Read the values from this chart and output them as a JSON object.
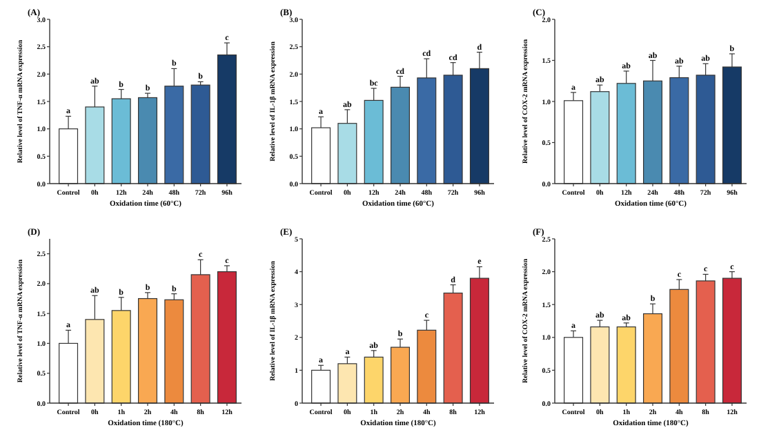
{
  "chart_data": [
    {
      "type": "bar",
      "title": "(A)",
      "xlabel": "Oxidation time (60°C)",
      "ylabel": "Relative level of TNF-α mRNA expression",
      "categories": [
        "Control",
        "0h",
        "12h",
        "24h",
        "48h",
        "72h",
        "96h"
      ],
      "values": [
        1.0,
        1.4,
        1.55,
        1.57,
        1.78,
        1.8,
        2.35
      ],
      "errors": [
        0.23,
        0.38,
        0.17,
        0.08,
        0.32,
        0.06,
        0.22
      ],
      "colors": [
        "#ffffff",
        "#a8dce6",
        "#6bbcd6",
        "#4a8ab0",
        "#3a6aa5",
        "#2e5a94",
        "#163a66"
      ],
      "ylim": [
        0,
        3
      ],
      "yticks": [
        {
          "value": 0,
          "label": "0.0"
        },
        {
          "value": 0.5,
          "label": "0.5"
        },
        {
          "value": 1,
          "label": "1.0"
        },
        {
          "value": 1.5,
          "label": "1.5"
        },
        {
          "value": 2,
          "label": "2.0"
        },
        {
          "value": 2.5,
          "label": "2.5"
        },
        {
          "value": 3,
          "label": "3.0"
        }
      ],
      "grid": false,
      "annotations": [
        {
          "text": "a",
          "x": "Control",
          "y": 1.23
        },
        {
          "text": "ab",
          "x": "0h",
          "y": 1.78
        },
        {
          "text": "b",
          "x": "12h",
          "y": 1.72
        },
        {
          "text": "b",
          "x": "24h",
          "y": 1.65
        },
        {
          "text": "b",
          "x": "48h",
          "y": 2.1
        },
        {
          "text": "b",
          "x": "72h",
          "y": 1.86
        },
        {
          "text": "c",
          "x": "96h",
          "y": 2.57
        }
      ]
    },
    {
      "type": "bar",
      "title": "(B)",
      "xlabel": "Oxidation time (60°C)",
      "ylabel": "Relative level of IL-1β mRNA expression",
      "categories": [
        "Control",
        "0h",
        "12h",
        "24h",
        "48h",
        "72h",
        "96h"
      ],
      "values": [
        1.02,
        1.1,
        1.52,
        1.76,
        1.93,
        1.98,
        2.1
      ],
      "errors": [
        0.2,
        0.25,
        0.22,
        0.2,
        0.35,
        0.23,
        0.3
      ],
      "colors": [
        "#ffffff",
        "#a8dce6",
        "#6bbcd6",
        "#4a8ab0",
        "#3a6aa5",
        "#2e5a94",
        "#163a66"
      ],
      "ylim": [
        0,
        3
      ],
      "yticks": [
        {
          "value": 0,
          "label": "0.0"
        },
        {
          "value": 0.5,
          "label": "0.5"
        },
        {
          "value": 1,
          "label": "1.0"
        },
        {
          "value": 1.5,
          "label": "1.5"
        },
        {
          "value": 2,
          "label": "2.0"
        },
        {
          "value": 2.5,
          "label": "2.5"
        },
        {
          "value": 3,
          "label": "3.0"
        }
      ],
      "grid": false,
      "annotations": [
        {
          "text": "a",
          "x": "Control",
          "y": 1.22
        },
        {
          "text": "ab",
          "x": "0h",
          "y": 1.35
        },
        {
          "text": "bc",
          "x": "12h",
          "y": 1.74
        },
        {
          "text": "cd",
          "x": "24h",
          "y": 1.96
        },
        {
          "text": "cd",
          "x": "48h",
          "y": 2.28
        },
        {
          "text": "cd",
          "x": "72h",
          "y": 2.21
        },
        {
          "text": "d",
          "x": "96h",
          "y": 2.4
        }
      ]
    },
    {
      "type": "bar",
      "title": "(C)",
      "xlabel": "Oxidation time (60°C)",
      "ylabel": "Relative level of COX-2 mRNA expression",
      "categories": [
        "Control",
        "0h",
        "12h",
        "24h",
        "48h",
        "72h",
        "96h"
      ],
      "values": [
        1.01,
        1.12,
        1.22,
        1.25,
        1.29,
        1.32,
        1.42
      ],
      "errors": [
        0.1,
        0.08,
        0.15,
        0.25,
        0.14,
        0.14,
        0.16
      ],
      "colors": [
        "#ffffff",
        "#a8dce6",
        "#6bbcd6",
        "#4a8ab0",
        "#3a6aa5",
        "#2e5a94",
        "#163a66"
      ],
      "ylim": [
        0,
        2
      ],
      "yticks": [
        {
          "value": 0,
          "label": "0.0"
        },
        {
          "value": 0.5,
          "label": "0.5"
        },
        {
          "value": 1,
          "label": "1.0"
        },
        {
          "value": 1.5,
          "label": "1.5"
        },
        {
          "value": 2,
          "label": "2.0"
        }
      ],
      "grid": false,
      "annotations": [
        {
          "text": "a",
          "x": "Control",
          "y": 1.11
        },
        {
          "text": "ab",
          "x": "0h",
          "y": 1.2
        },
        {
          "text": "ab",
          "x": "12h",
          "y": 1.37
        },
        {
          "text": "ab",
          "x": "24h",
          "y": 1.5
        },
        {
          "text": "ab",
          "x": "48h",
          "y": 1.43
        },
        {
          "text": "ab",
          "x": "72h",
          "y": 1.46
        },
        {
          "text": "b",
          "x": "96h",
          "y": 1.58
        }
      ]
    },
    {
      "type": "bar",
      "title": "(D)",
      "xlabel": "Oxidation time (180°C)",
      "ylabel": "Relative level of TNF-α mRNA expression",
      "categories": [
        "Control",
        "0h",
        "1h",
        "2h",
        "4h",
        "8h",
        "12h"
      ],
      "values": [
        1.0,
        1.4,
        1.55,
        1.75,
        1.73,
        2.15,
        2.2
      ],
      "errors": [
        0.22,
        0.4,
        0.22,
        0.1,
        0.1,
        0.25,
        0.1
      ],
      "colors": [
        "#ffffff",
        "#fde6b0",
        "#fdd56a",
        "#f9a852",
        "#ec8a3e",
        "#e4604e",
        "#c8283a"
      ],
      "ylim": [
        0,
        2.75
      ],
      "yticks": [
        {
          "value": 0,
          "label": "0.0"
        },
        {
          "value": 0.5,
          "label": "0.5"
        },
        {
          "value": 1,
          "label": "1.0"
        },
        {
          "value": 1.5,
          "label": "1.5"
        },
        {
          "value": 2,
          "label": "2.0"
        },
        {
          "value": 2.5,
          "label": "2.5"
        }
      ],
      "grid": false,
      "annotations": [
        {
          "text": "a",
          "x": "Control",
          "y": 1.22
        },
        {
          "text": "ab",
          "x": "0h",
          "y": 1.8
        },
        {
          "text": "b",
          "x": "1h",
          "y": 1.77
        },
        {
          "text": "b",
          "x": "2h",
          "y": 1.85
        },
        {
          "text": "b",
          "x": "4h",
          "y": 1.83
        },
        {
          "text": "c",
          "x": "8h",
          "y": 2.4
        },
        {
          "text": "c",
          "x": "12h",
          "y": 2.3
        }
      ]
    },
    {
      "type": "bar",
      "title": "(E)",
      "xlabel": "Oxidation time (180°C)",
      "ylabel": "Relative level of IL-1β mRNA expression",
      "categories": [
        "Control",
        "0h",
        "1h",
        "2h",
        "4h",
        "8h",
        "12h"
      ],
      "values": [
        1.0,
        1.2,
        1.4,
        1.7,
        2.22,
        3.35,
        3.8
      ],
      "errors": [
        0.15,
        0.2,
        0.2,
        0.25,
        0.3,
        0.25,
        0.35
      ],
      "colors": [
        "#ffffff",
        "#fde6b0",
        "#fdd56a",
        "#f9a852",
        "#ec8a3e",
        "#e4604e",
        "#c8283a"
      ],
      "ylim": [
        0,
        5
      ],
      "yticks": [
        0,
        1,
        2,
        3,
        4,
        5
      ],
      "grid": false,
      "annotations": [
        {
          "text": "a",
          "x": "Control",
          "y": 1.15
        },
        {
          "text": "a",
          "x": "0h",
          "y": 1.4
        },
        {
          "text": "ab",
          "x": "1h",
          "y": 1.6
        },
        {
          "text": "b",
          "x": "2h",
          "y": 1.95
        },
        {
          "text": "c",
          "x": "4h",
          "y": 2.52
        },
        {
          "text": "d",
          "x": "8h",
          "y": 3.6
        },
        {
          "text": "e",
          "x": "12h",
          "y": 4.15
        }
      ]
    },
    {
      "type": "bar",
      "title": "(F)",
      "xlabel": "Oxidation time (180°C)",
      "ylabel": "Relative level of COX-2 mRNA expression",
      "categories": [
        "Control",
        "0h",
        "1h",
        "2h",
        "4h",
        "8h",
        "12h"
      ],
      "values": [
        1.0,
        1.16,
        1.16,
        1.36,
        1.73,
        1.86,
        1.9
      ],
      "errors": [
        0.1,
        0.1,
        0.06,
        0.15,
        0.15,
        0.1,
        0.1
      ],
      "colors": [
        "#ffffff",
        "#fde6b0",
        "#fdd56a",
        "#f9a852",
        "#ec8a3e",
        "#e4604e",
        "#c8283a"
      ],
      "ylim": [
        0,
        2.5
      ],
      "yticks": [
        {
          "value": 0,
          "label": "0.0"
        },
        {
          "value": 0.5,
          "label": "0.5"
        },
        {
          "value": 1,
          "label": "1.0"
        },
        {
          "value": 1.5,
          "label": "1.5"
        },
        {
          "value": 2,
          "label": "2.0"
        },
        {
          "value": 2.5,
          "label": "2.5"
        }
      ],
      "grid": false,
      "annotations": [
        {
          "text": "a",
          "x": "Control",
          "y": 1.1
        },
        {
          "text": "ab",
          "x": "0h",
          "y": 1.26
        },
        {
          "text": "ab",
          "x": "1h",
          "y": 1.22
        },
        {
          "text": "b",
          "x": "2h",
          "y": 1.51
        },
        {
          "text": "c",
          "x": "4h",
          "y": 1.88
        },
        {
          "text": "c",
          "x": "8h",
          "y": 1.96
        },
        {
          "text": "c",
          "x": "12h",
          "y": 2.0
        }
      ]
    }
  ]
}
